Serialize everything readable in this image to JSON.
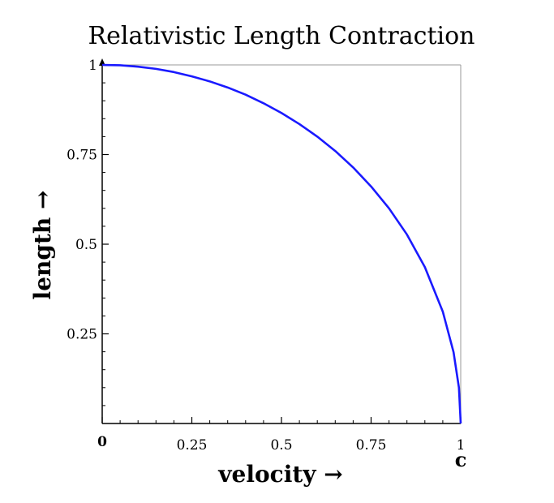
{
  "chart_data": {
    "type": "line",
    "title": "Relativistic Length Contraction",
    "xlabel": "velocity →",
    "ylabel": "length →",
    "x_unit_label": "c",
    "xlim": [
      0,
      1
    ],
    "ylim": [
      0,
      1
    ],
    "x_ticks": [
      {
        "value": 0,
        "label": "0"
      },
      {
        "value": 0.25,
        "label": "0.25"
      },
      {
        "value": 0.5,
        "label": "0.5"
      },
      {
        "value": 0.75,
        "label": "0.75"
      },
      {
        "value": 1,
        "label": "1"
      }
    ],
    "y_ticks": [
      {
        "value": 0.25,
        "label": "0.25"
      },
      {
        "value": 0.5,
        "label": "0.5"
      },
      {
        "value": 0.75,
        "label": "0.75"
      },
      {
        "value": 1,
        "label": "1"
      }
    ],
    "grid": false,
    "series": [
      {
        "color": "#1a1aff",
        "x": [
          0,
          0.05,
          0.1,
          0.15,
          0.2,
          0.25,
          0.3,
          0.35,
          0.4,
          0.45,
          0.5,
          0.55,
          0.6,
          0.65,
          0.7,
          0.75,
          0.8,
          0.85,
          0.9,
          0.95,
          0.98,
          0.995,
          1
        ],
        "y": [
          1,
          0.999,
          0.995,
          0.989,
          0.98,
          0.968,
          0.954,
          0.937,
          0.917,
          0.893,
          0.866,
          0.835,
          0.8,
          0.76,
          0.714,
          0.661,
          0.6,
          0.527,
          0.436,
          0.312,
          0.199,
          0.1,
          0
        ]
      }
    ]
  }
}
